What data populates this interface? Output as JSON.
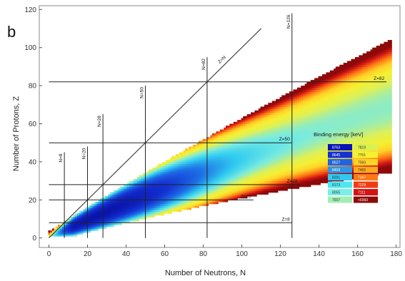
{
  "chart_data": {
    "type": "heatmap",
    "panel_label": "b",
    "xlabel": "Number of Neutrons, N",
    "ylabel": "Number of Protons, Z",
    "xlim": [
      -5,
      182
    ],
    "ylim": [
      -5,
      122
    ],
    "x_ticks": [
      0,
      20,
      40,
      60,
      80,
      100,
      120,
      140,
      160,
      180
    ],
    "y_ticks": [
      0,
      20,
      40,
      60,
      80,
      100,
      120
    ],
    "grid": false,
    "vertical_magic_lines": [
      {
        "label": "N=8",
        "x": 8,
        "y_range": [
          0,
          45
        ]
      },
      {
        "label": "N=20",
        "x": 20,
        "y_range": [
          0,
          48
        ]
      },
      {
        "label": "N=28",
        "x": 28,
        "y_range": [
          0,
          65
        ]
      },
      {
        "label": "N=50",
        "x": 50,
        "y_range": [
          0,
          80
        ]
      },
      {
        "label": "N=82",
        "x": 82,
        "y_range": [
          0,
          95
        ]
      },
      {
        "label": "N=126",
        "x": 126,
        "y_range": [
          0,
          118
        ]
      }
    ],
    "horizontal_magic_lines": [
      {
        "label": "Z=8",
        "y": 8,
        "x_range": [
          0,
          126
        ]
      },
      {
        "label": "Z=20",
        "y": 20,
        "x_range": [
          0,
          106
        ]
      },
      {
        "label": "Z=28",
        "y": 28,
        "x_range": [
          0,
          130
        ]
      },
      {
        "label": "Z=50",
        "y": 50,
        "x_range": [
          0,
          126
        ]
      },
      {
        "label": "Z=82",
        "y": 82,
        "x_range": [
          0,
          175
        ]
      }
    ],
    "diagonal_line": {
      "label": "Z=N",
      "from": [
        0,
        0
      ],
      "to": [
        110,
        110
      ]
    },
    "legend": {
      "title": "Binding energy [keV]",
      "placement": "right",
      "column1": [
        {
          "label": "8763",
          "color": "#0a14b4"
        },
        {
          "label": "8645",
          "color": "#1432d2"
        },
        {
          "label": "8527",
          "color": "#1e64e6"
        },
        {
          "label": "8409",
          "color": "#2896f0"
        },
        {
          "label": "8291",
          "color": "#32c8f0"
        },
        {
          "label": "8173",
          "color": "#50e6f0"
        },
        {
          "label": "8055",
          "color": "#78f0e6"
        },
        {
          "label": "7937",
          "color": "#a0f0b4"
        }
      ],
      "column2": [
        {
          "label": "7819",
          "color": "#dcf050"
        },
        {
          "label": "7701",
          "color": "#f5f032"
        },
        {
          "label": "7583",
          "color": "#ffd228"
        },
        {
          "label": "7465",
          "color": "#ffaa1e"
        },
        {
          "label": "7347",
          "color": "#ff7814"
        },
        {
          "label": "7229",
          "color": "#f03c14"
        },
        {
          "label": "7111",
          "color": "#d21414"
        },
        {
          "label": "<6993",
          "color": "#8c0a0a"
        }
      ]
    }
  }
}
